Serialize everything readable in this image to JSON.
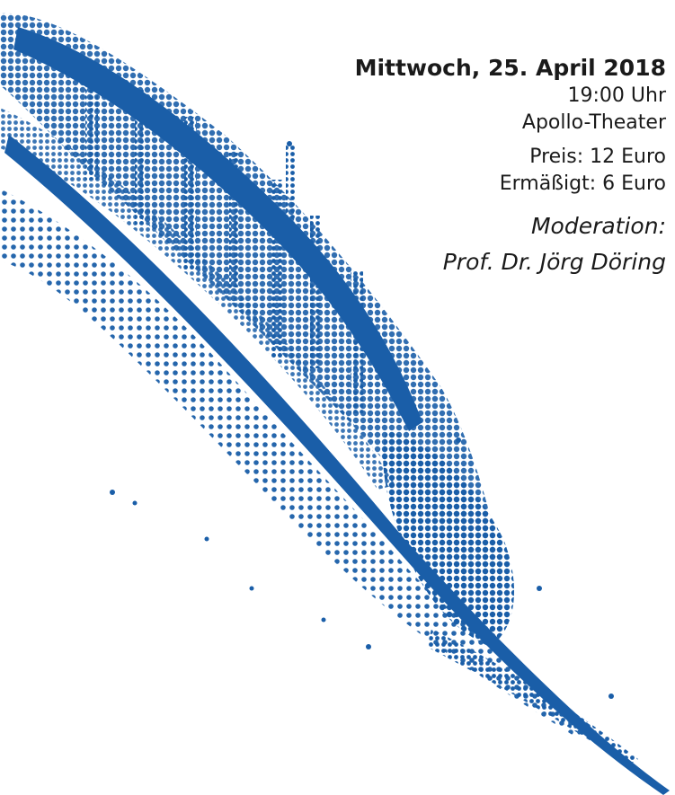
{
  "event": {
    "date": "Mittwoch, 25. April 2018",
    "time": "19:00 Uhr",
    "venue": "Apollo-Theater",
    "price": "Preis: 12 Euro",
    "price_reduced": "Ermäßigt: 6 Euro",
    "moderation_label": "Moderation:",
    "moderator": "Prof. Dr.  Jörg Döring"
  },
  "colors": {
    "feather": "#1a5ea8",
    "text": "#1a1a1a",
    "background": "#ffffff"
  },
  "decoration": {
    "icon": "feather-quill-icon"
  }
}
